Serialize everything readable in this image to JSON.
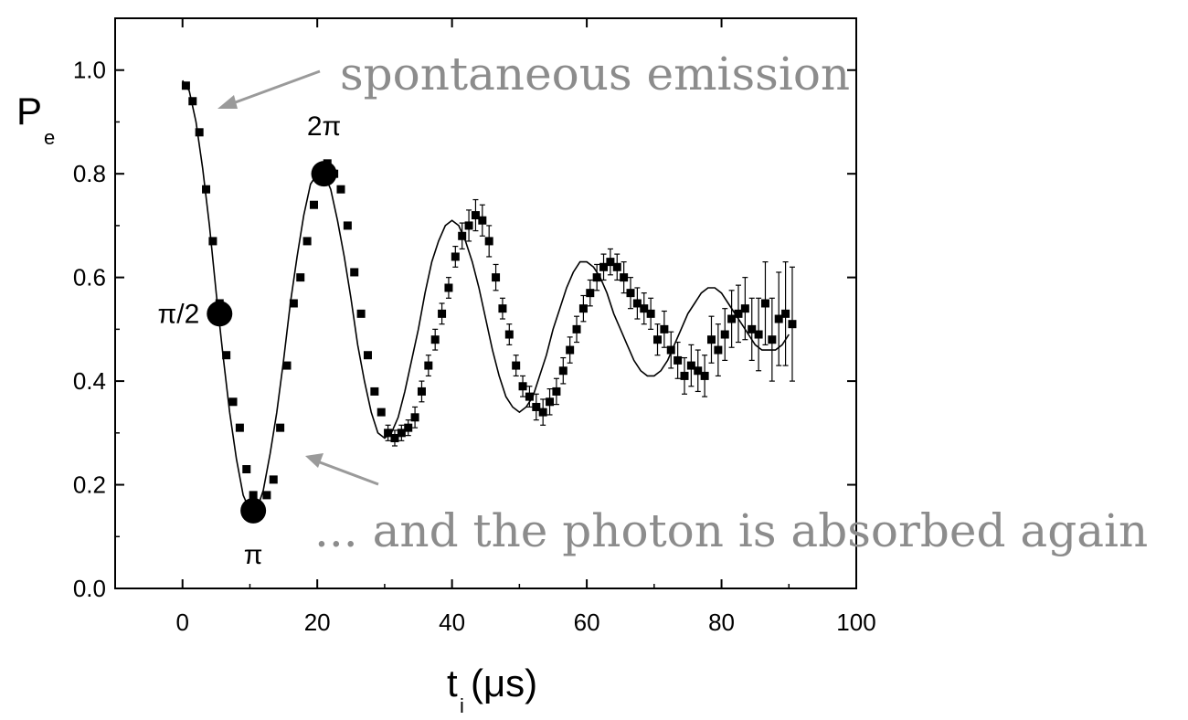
{
  "chart_data": {
    "type": "scatter",
    "xlabel": {
      "base": "t",
      "sub": "i",
      "rest": " (μs)"
    },
    "ylabel": {
      "base": "P",
      "sub": "e"
    },
    "xlim": [
      -10,
      100
    ],
    "ylim": [
      0,
      1.1
    ],
    "xticks": [
      "0",
      "20",
      "40",
      "60",
      "80",
      "100"
    ],
    "xtick_values": [
      0,
      20,
      40,
      60,
      80,
      100
    ],
    "yticks": [
      "0.0",
      "0.2",
      "0.4",
      "0.6",
      "0.8",
      "1.0"
    ],
    "ytick_values": [
      0,
      0.2,
      0.4,
      0.6,
      0.8,
      1.0
    ],
    "grid": false,
    "series": [
      {
        "kind": "points-with-error-bars",
        "x": [
          0.5,
          1.5,
          2.5,
          3.5,
          4.5,
          5.5,
          6.5,
          7.5,
          8.5,
          9.5,
          10.5,
          11.5,
          12.5,
          13.5,
          14.5,
          15.5,
          16.5,
          17.5,
          18.5,
          19.5,
          20.5,
          21.5,
          22.5,
          23.5,
          24.5,
          25.5,
          26.5,
          27.5,
          28.5,
          29.5,
          30.5,
          31.5,
          32.5,
          33.5,
          34.5,
          35.5,
          36.5,
          37.5,
          38.5,
          39.5,
          40.5,
          41.5,
          42.5,
          43.5,
          44.5,
          45.5,
          46.5,
          47.5,
          48.5,
          49.5,
          50.5,
          51.5,
          52.5,
          53.5,
          54.5,
          55.5,
          56.5,
          57.5,
          58.5,
          59.5,
          60.5,
          61.5,
          62.5,
          63.5,
          64.5,
          65.5,
          66.5,
          67.5,
          68.5,
          69.5,
          70.5,
          71.5,
          72.5,
          73.5,
          74.5,
          75.5,
          76.5,
          77.5,
          78.5,
          79.5,
          80.5,
          81.5,
          82.5,
          83.5,
          84.5,
          85.5,
          86.5,
          87.5,
          88.5,
          89.5,
          90.5
        ],
        "y": [
          0.97,
          0.94,
          0.88,
          0.77,
          0.67,
          0.55,
          0.45,
          0.36,
          0.31,
          0.23,
          0.18,
          0.15,
          0.18,
          0.21,
          0.31,
          0.43,
          0.55,
          0.6,
          0.67,
          0.74,
          0.79,
          0.82,
          0.8,
          0.77,
          0.7,
          0.61,
          0.53,
          0.45,
          0.38,
          0.34,
          0.3,
          0.29,
          0.3,
          0.31,
          0.33,
          0.38,
          0.43,
          0.48,
          0.53,
          0.58,
          0.64,
          0.68,
          0.7,
          0.72,
          0.71,
          0.67,
          0.6,
          0.54,
          0.49,
          0.43,
          0.39,
          0.37,
          0.35,
          0.34,
          0.36,
          0.38,
          0.42,
          0.46,
          0.5,
          0.54,
          0.57,
          0.6,
          0.62,
          0.63,
          0.62,
          0.6,
          0.57,
          0.55,
          0.54,
          0.53,
          0.48,
          0.5,
          0.46,
          0.44,
          0.41,
          0.43,
          0.42,
          0.41,
          0.48,
          0.46,
          0.49,
          0.52,
          0.53,
          0.54,
          0.5,
          0.49,
          0.55,
          0.48,
          0.52,
          0.53,
          0.51
        ],
        "err": [
          0.01,
          0.01,
          0.01,
          0.01,
          0.01,
          0.01,
          0.01,
          0.01,
          0.01,
          0.01,
          0.01,
          0.01,
          0.01,
          0.01,
          0.01,
          0.01,
          0.01,
          0.01,
          0.01,
          0.01,
          0.01,
          0.01,
          0.01,
          0.01,
          0.01,
          0.01,
          0.01,
          0.01,
          0.01,
          0.01,
          0.015,
          0.015,
          0.015,
          0.015,
          0.02,
          0.02,
          0.02,
          0.02,
          0.02,
          0.02,
          0.02,
          0.025,
          0.03,
          0.03,
          0.03,
          0.03,
          0.025,
          0.02,
          0.02,
          0.02,
          0.02,
          0.02,
          0.025,
          0.025,
          0.025,
          0.025,
          0.025,
          0.025,
          0.025,
          0.025,
          0.025,
          0.025,
          0.025,
          0.025,
          0.025,
          0.03,
          0.03,
          0.03,
          0.03,
          0.03,
          0.03,
          0.035,
          0.035,
          0.035,
          0.035,
          0.04,
          0.04,
          0.04,
          0.045,
          0.05,
          0.05,
          0.055,
          0.055,
          0.06,
          0.06,
          0.07,
          0.08,
          0.08,
          0.09,
          0.1,
          0.11
        ]
      },
      {
        "kind": "fit-line",
        "x": [
          0,
          1,
          2,
          3,
          4,
          5,
          6,
          7,
          8,
          9,
          10,
          11,
          12,
          13,
          14,
          15,
          16,
          17,
          18,
          19,
          20,
          21,
          22,
          23,
          24,
          25,
          26,
          27,
          28,
          29,
          30,
          31,
          32,
          33,
          34,
          35,
          36,
          37,
          38,
          39,
          40,
          41,
          42,
          43,
          44,
          45,
          46,
          47,
          48,
          49,
          50,
          51,
          52,
          53,
          54,
          55,
          56,
          57,
          58,
          59,
          60,
          61,
          62,
          63,
          64,
          65,
          66,
          67,
          68,
          69,
          70,
          71,
          72,
          73,
          74,
          75,
          76,
          77,
          78,
          79,
          80,
          81,
          82,
          83,
          84,
          85,
          86,
          87,
          88,
          89,
          90
        ],
        "y": [
          0.98,
          0.96,
          0.9,
          0.81,
          0.7,
          0.57,
          0.45,
          0.34,
          0.25,
          0.18,
          0.15,
          0.15,
          0.19,
          0.26,
          0.34,
          0.44,
          0.55,
          0.64,
          0.72,
          0.78,
          0.8,
          0.8,
          0.77,
          0.71,
          0.64,
          0.56,
          0.47,
          0.4,
          0.34,
          0.3,
          0.29,
          0.3,
          0.33,
          0.38,
          0.44,
          0.5,
          0.57,
          0.63,
          0.67,
          0.7,
          0.71,
          0.7,
          0.67,
          0.63,
          0.58,
          0.52,
          0.46,
          0.41,
          0.37,
          0.35,
          0.34,
          0.35,
          0.37,
          0.41,
          0.45,
          0.5,
          0.54,
          0.58,
          0.61,
          0.63,
          0.63,
          0.62,
          0.6,
          0.57,
          0.53,
          0.5,
          0.47,
          0.44,
          0.42,
          0.41,
          0.41,
          0.42,
          0.44,
          0.47,
          0.5,
          0.53,
          0.55,
          0.57,
          0.58,
          0.58,
          0.57,
          0.55,
          0.53,
          0.51,
          0.49,
          0.47,
          0.46,
          0.46,
          0.46,
          0.47,
          0.49
        ]
      }
    ],
    "highlight_points": [
      {
        "label": "π/2",
        "x": 5.5,
        "y": 0.53,
        "label_side": "left"
      },
      {
        "label": "π",
        "x": 10.5,
        "y": 0.15,
        "label_side": "below"
      },
      {
        "label": "2π",
        "x": 21,
        "y": 0.8,
        "label_side": "above"
      }
    ],
    "annotations": [
      {
        "text": "spontaneous emission",
        "arrow_to": {
          "x": 5,
          "y": 0.93
        }
      },
      {
        "text": "... and the photon is absorbed again",
        "arrow_to": {
          "x": 18,
          "y": 0.26
        }
      }
    ],
    "colors": {
      "markers": "#000000",
      "fit_line": "#000000",
      "annotation_text": "#8c8c8c",
      "annotation_arrow": "#9a9a9a"
    }
  }
}
